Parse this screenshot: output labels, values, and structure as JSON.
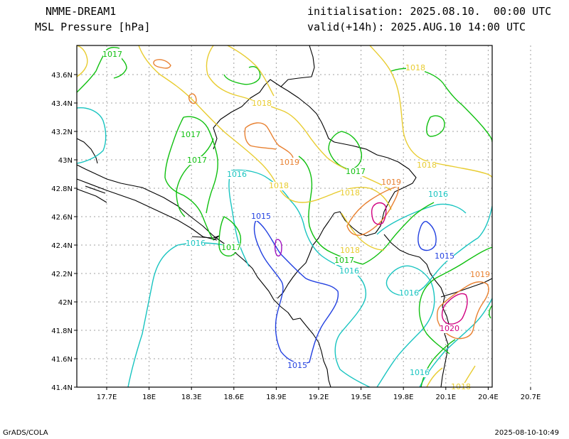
{
  "header": {
    "model": "NMME-DREAM1",
    "field": "MSL Pressure [hPa]",
    "init": "initialisation: 2025.08.10.  00:00 UTC",
    "valid": "valid(+14h): 2025.AUG.10 14:00 UTC"
  },
  "footer": {
    "credit": "GrADS/COLA",
    "timestamp": "2025-08-10-10:49"
  },
  "map": {
    "lon_ticks": [
      "17.7E",
      "18E",
      "18.3E",
      "18.6E",
      "18.9E",
      "19.2E",
      "19.5E",
      "19.8E",
      "20.1E",
      "20.4E",
      "20.7E"
    ],
    "lat_ticks": [
      "43.6N",
      "43.4N",
      "43.2N",
      "43N",
      "42.8N",
      "42.6N",
      "42.4N",
      "42.2N",
      "42N",
      "41.8N",
      "41.6N",
      "41.4N"
    ],
    "levels": [
      {
        "hpa": "1015",
        "color": "#2240e0"
      },
      {
        "hpa": "1016",
        "color": "#18c4c0"
      },
      {
        "hpa": "1017",
        "color": "#10c010"
      },
      {
        "hpa": "1018",
        "color": "#e8cc30"
      },
      {
        "hpa": "1019",
        "color": "#e88030"
      },
      {
        "hpa": "1020",
        "color": "#d00080"
      },
      {
        "hpa": "1021",
        "color": "#a010c0"
      }
    ],
    "contour_labels": [
      {
        "text": "1017",
        "level": "1017"
      },
      {
        "text": "1018",
        "level": "1018"
      },
      {
        "text": "1018",
        "level": "1018"
      },
      {
        "text": "1017",
        "level": "1017"
      },
      {
        "text": "1017",
        "level": "1017"
      },
      {
        "text": "1019",
        "level": "1019"
      },
      {
        "text": "1016",
        "level": "1016"
      },
      {
        "text": "1017",
        "level": "1017"
      },
      {
        "text": "1019",
        "level": "1019"
      },
      {
        "text": "1018",
        "level": "1018"
      },
      {
        "text": "1018",
        "level": "1018"
      },
      {
        "text": "1018",
        "level": "1018"
      },
      {
        "text": "1016",
        "level": "1016"
      },
      {
        "text": "1015",
        "level": "1015"
      },
      {
        "text": "1016",
        "level": "1016"
      },
      {
        "text": "1017",
        "level": "1017"
      },
      {
        "text": "1018",
        "level": "1018"
      },
      {
        "text": "1017",
        "level": "1017"
      },
      {
        "text": "1016",
        "level": "1016"
      },
      {
        "text": "1015",
        "level": "1015"
      },
      {
        "text": "1016",
        "level": "1016"
      },
      {
        "text": "1019",
        "level": "1019"
      },
      {
        "text": "1020",
        "level": "1020"
      },
      {
        "text": "1015",
        "level": "1015"
      },
      {
        "text": "1016",
        "level": "1016"
      },
      {
        "text": "1018",
        "level": "1018"
      }
    ]
  }
}
